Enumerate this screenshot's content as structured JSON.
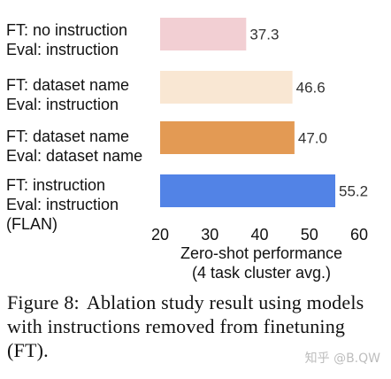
{
  "chart_data": {
    "type": "bar",
    "orientation": "horizontal",
    "categories": [
      [
        "FT: no instruction",
        "Eval: instruction"
      ],
      [
        "FT: dataset name",
        "Eval: instruction"
      ],
      [
        "FT: dataset name",
        "Eval: dataset name"
      ],
      [
        "FT: instruction",
        "Eval: instruction",
        "(FLAN)"
      ]
    ],
    "values": [
      37.3,
      46.6,
      47.0,
      55.2
    ],
    "value_labels": [
      "37.3",
      "46.6",
      "47.0",
      "55.2"
    ],
    "colors": [
      "#f2cfd3",
      "#f9e7d3",
      "#e39a54",
      "#5283e6"
    ],
    "xlim": [
      20,
      60
    ],
    "xticks": [
      20,
      30,
      40,
      50,
      60
    ],
    "xlabel": [
      "Zero-shot performance",
      "(4 task cluster avg.)"
    ],
    "grid": false
  },
  "caption": {
    "figure_number": "Figure 8:",
    "text": "Ablation study result using models with instructions removed from finetuning (FT)."
  },
  "watermark": "知乎 @B.QW"
}
